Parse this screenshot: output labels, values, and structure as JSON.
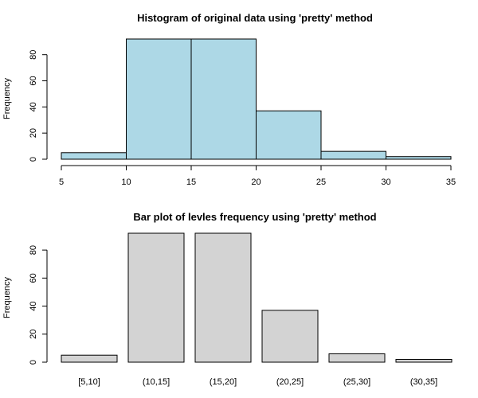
{
  "chart_data": [
    {
      "type": "bar",
      "subtype": "histogram",
      "title": "Histogram of original data using 'pretty' method",
      "xlabel": "",
      "ylabel": "Frequency",
      "bin_edges": [
        5,
        10,
        15,
        20,
        25,
        30,
        35
      ],
      "values": [
        5,
        92,
        92,
        37,
        6,
        2
      ],
      "x_ticks": [
        5,
        10,
        15,
        20,
        25,
        30,
        35
      ],
      "y_ticks": [
        0,
        20,
        40,
        60,
        80
      ],
      "xlim": [
        5,
        35
      ],
      "ylim": [
        0,
        92
      ],
      "bar_color": "#add8e6",
      "grid": false
    },
    {
      "type": "bar",
      "title": "Bar plot of levles frequency using 'pretty' method",
      "xlabel": "",
      "ylabel": "Frequency",
      "categories": [
        "[5,10]",
        "(10,15]",
        "(15,20]",
        "(20,25]",
        "(25,30]",
        "(30,35]"
      ],
      "values": [
        5,
        92,
        92,
        37,
        6,
        2
      ],
      "y_ticks": [
        0,
        20,
        40,
        60,
        80
      ],
      "ylim": [
        0,
        92
      ],
      "bar_color": "#d3d3d3",
      "grid": false
    }
  ]
}
